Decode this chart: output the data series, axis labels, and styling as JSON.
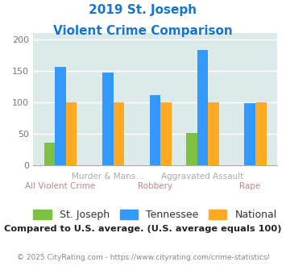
{
  "title_line1": "2019 St. Joseph",
  "title_line2": "Violent Crime Comparison",
  "title_color": "#1874cd",
  "categories": [
    "All Violent Crime",
    "Murder & Mans...",
    "Robbery",
    "Aggravated Assault",
    "Rape"
  ],
  "cat_row": [
    1,
    0,
    1,
    0,
    1
  ],
  "series": {
    "St. Joseph": [
      35,
      0,
      0,
      51,
      0
    ],
    "Tennessee": [
      156,
      147,
      111,
      183,
      98
    ],
    "National": [
      100,
      100,
      100,
      100,
      100
    ]
  },
  "colors": {
    "St. Joseph": "#7fc241",
    "Tennessee": "#3399ff",
    "National": "#ffaa22"
  },
  "ylim": [
    0,
    210
  ],
  "yticks": [
    0,
    50,
    100,
    150,
    200
  ],
  "background_color": "#ddeaea",
  "grid_color": "#ffffff",
  "bar_width": 0.23,
  "legend_fontsize": 9,
  "tick_label_fontsize": 8,
  "cat_label_fontsize": 7.5,
  "cat_label_color_upper": "#aaaaaa",
  "cat_label_color_lower": "#bb8888",
  "note_text": "Compared to U.S. average. (U.S. average equals 100)",
  "note_color": "#222222",
  "footer_text": "© 2025 CityRating.com - https://www.cityrating.com/crime-statistics/",
  "footer_color": "#888888",
  "footer_link_color": "#2288cc"
}
